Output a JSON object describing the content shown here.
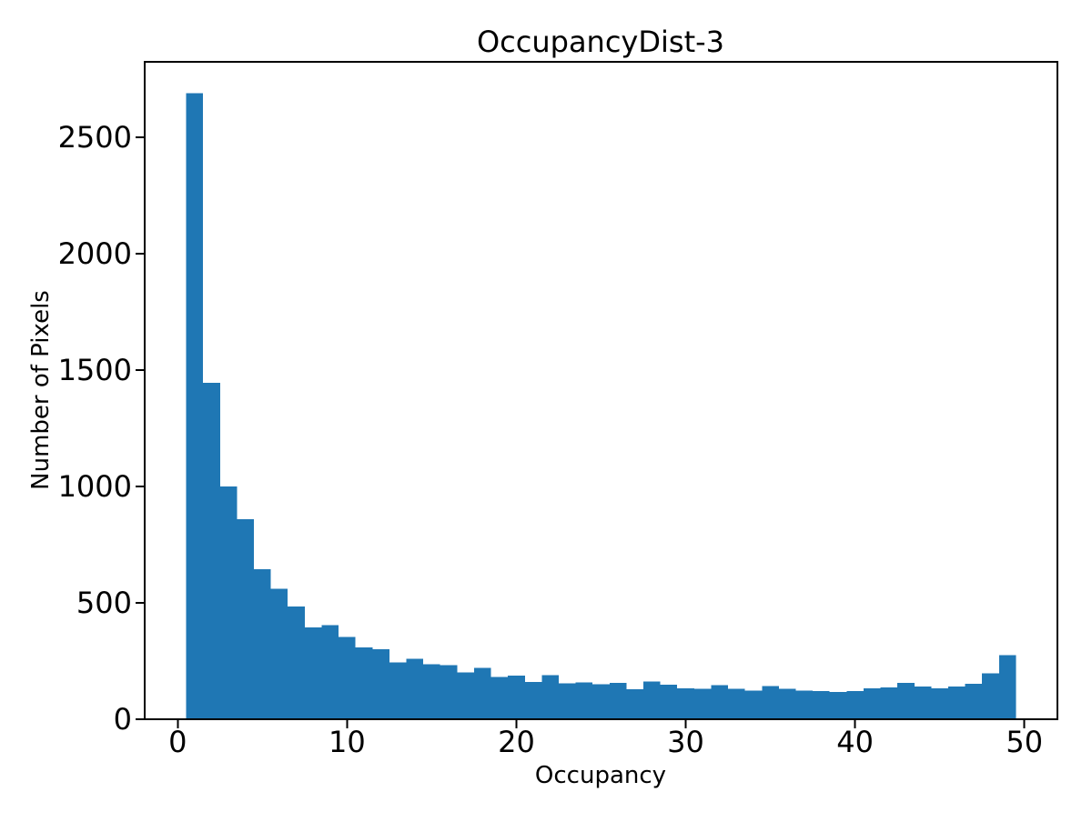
{
  "figure": {
    "background_color": "#ffffff"
  },
  "chart_data": {
    "type": "bar",
    "subtype": "histogram",
    "title": "OccupancyDist-3",
    "xlabel": "Occupancy",
    "ylabel": "Number of Pixels",
    "bar_color": "#1f77b4",
    "axis_color": "#000000",
    "text_color": "#000000",
    "grid": false,
    "legend": null,
    "bin_start": 0.5,
    "bin_width": 1.0,
    "bin_centers": [
      1,
      2,
      3,
      4,
      5,
      6,
      7,
      8,
      9,
      10,
      11,
      12,
      13,
      14,
      15,
      16,
      17,
      18,
      19,
      20,
      21,
      22,
      23,
      24,
      25,
      26,
      27,
      28,
      29,
      30,
      31,
      32,
      33,
      34,
      35,
      36,
      37,
      38,
      39,
      40,
      41,
      42,
      43,
      44,
      45,
      46,
      47,
      48,
      49
    ],
    "values": [
      2690,
      1445,
      1000,
      860,
      645,
      560,
      485,
      395,
      405,
      353,
      308,
      300,
      245,
      260,
      237,
      232,
      202,
      220,
      182,
      188,
      160,
      190,
      155,
      158,
      150,
      156,
      128,
      162,
      149,
      132,
      130,
      147,
      130,
      123,
      142,
      130,
      123,
      121,
      118,
      121,
      132,
      136,
      156,
      140,
      133,
      140,
      153,
      197,
      275
    ],
    "x_ticks": [
      0,
      10,
      20,
      30,
      40,
      50
    ],
    "y_ticks": [
      0,
      500,
      1000,
      1500,
      2000,
      2500
    ],
    "xlim": [
      -1.95,
      51.95
    ],
    "ylim": [
      0,
      2824
    ]
  }
}
